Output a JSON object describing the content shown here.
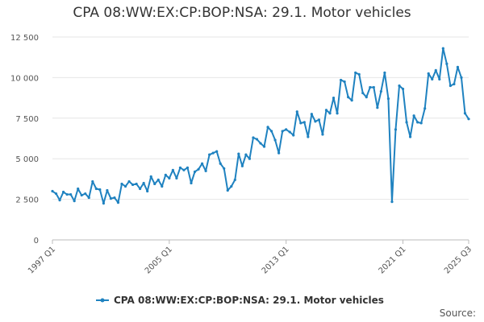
{
  "chart_data": {
    "type": "line",
    "title": "CPA 08:WW:EX:CP:BOP:NSA: 29.1. Motor vehicles",
    "xlabel": "",
    "ylabel": "",
    "x_start": "1997 Q1",
    "x_end": "2025 Q3",
    "ylim": [
      0,
      12500
    ],
    "y_ticks": [
      0,
      2500,
      5000,
      7500,
      10000,
      12500
    ],
    "y_tick_labels": [
      "0",
      "2 500",
      "5 000",
      "7 500",
      "10 000",
      "12 500"
    ],
    "x_tick_labels": [
      {
        "label": "1997 Q1",
        "index": 0
      },
      {
        "label": "2005 Q1",
        "index": 32
      },
      {
        "label": "2013 Q1",
        "index": 64
      },
      {
        "label": "2021 Q1",
        "index": 96
      },
      {
        "label": "2025 Q3",
        "index": 114
      }
    ],
    "grid": true,
    "legend_position": "bottom",
    "series": [
      {
        "name": "CPA 08:WW:EX:CP:BOP:NSA: 29.1. Motor vehicles",
        "color": "#1f82c0",
        "values": [
          3000,
          2850,
          2450,
          2950,
          2800,
          2800,
          2400,
          3150,
          2750,
          2850,
          2600,
          3600,
          3150,
          3100,
          2250,
          3050,
          2550,
          2600,
          2300,
          3450,
          3300,
          3600,
          3400,
          3450,
          3150,
          3500,
          3000,
          3900,
          3450,
          3700,
          3300,
          4000,
          3800,
          4300,
          3800,
          4450,
          4300,
          4450,
          3500,
          4200,
          4350,
          4700,
          4250,
          5250,
          5350,
          5450,
          4700,
          4400,
          3050,
          3300,
          3700,
          5300,
          4550,
          5250,
          5000,
          6300,
          6200,
          5950,
          5750,
          6950,
          6700,
          6150,
          5350,
          6700,
          6800,
          6650,
          6450,
          7900,
          7200,
          7250,
          6350,
          7750,
          7300,
          7400,
          6500,
          8000,
          7800,
          8750,
          7800,
          9850,
          9750,
          8800,
          8600,
          10300,
          10200,
          9050,
          8800,
          9400,
          9400,
          8150,
          9150,
          10300,
          8700,
          2350,
          6800,
          9500,
          9300,
          7250,
          6350,
          7650,
          7250,
          7200,
          8100,
          10250,
          9900,
          10450,
          9900,
          11800,
          10850,
          9500,
          9600,
          10650,
          10000,
          7800,
          7450
        ]
      }
    ]
  },
  "source_label": "Source:"
}
